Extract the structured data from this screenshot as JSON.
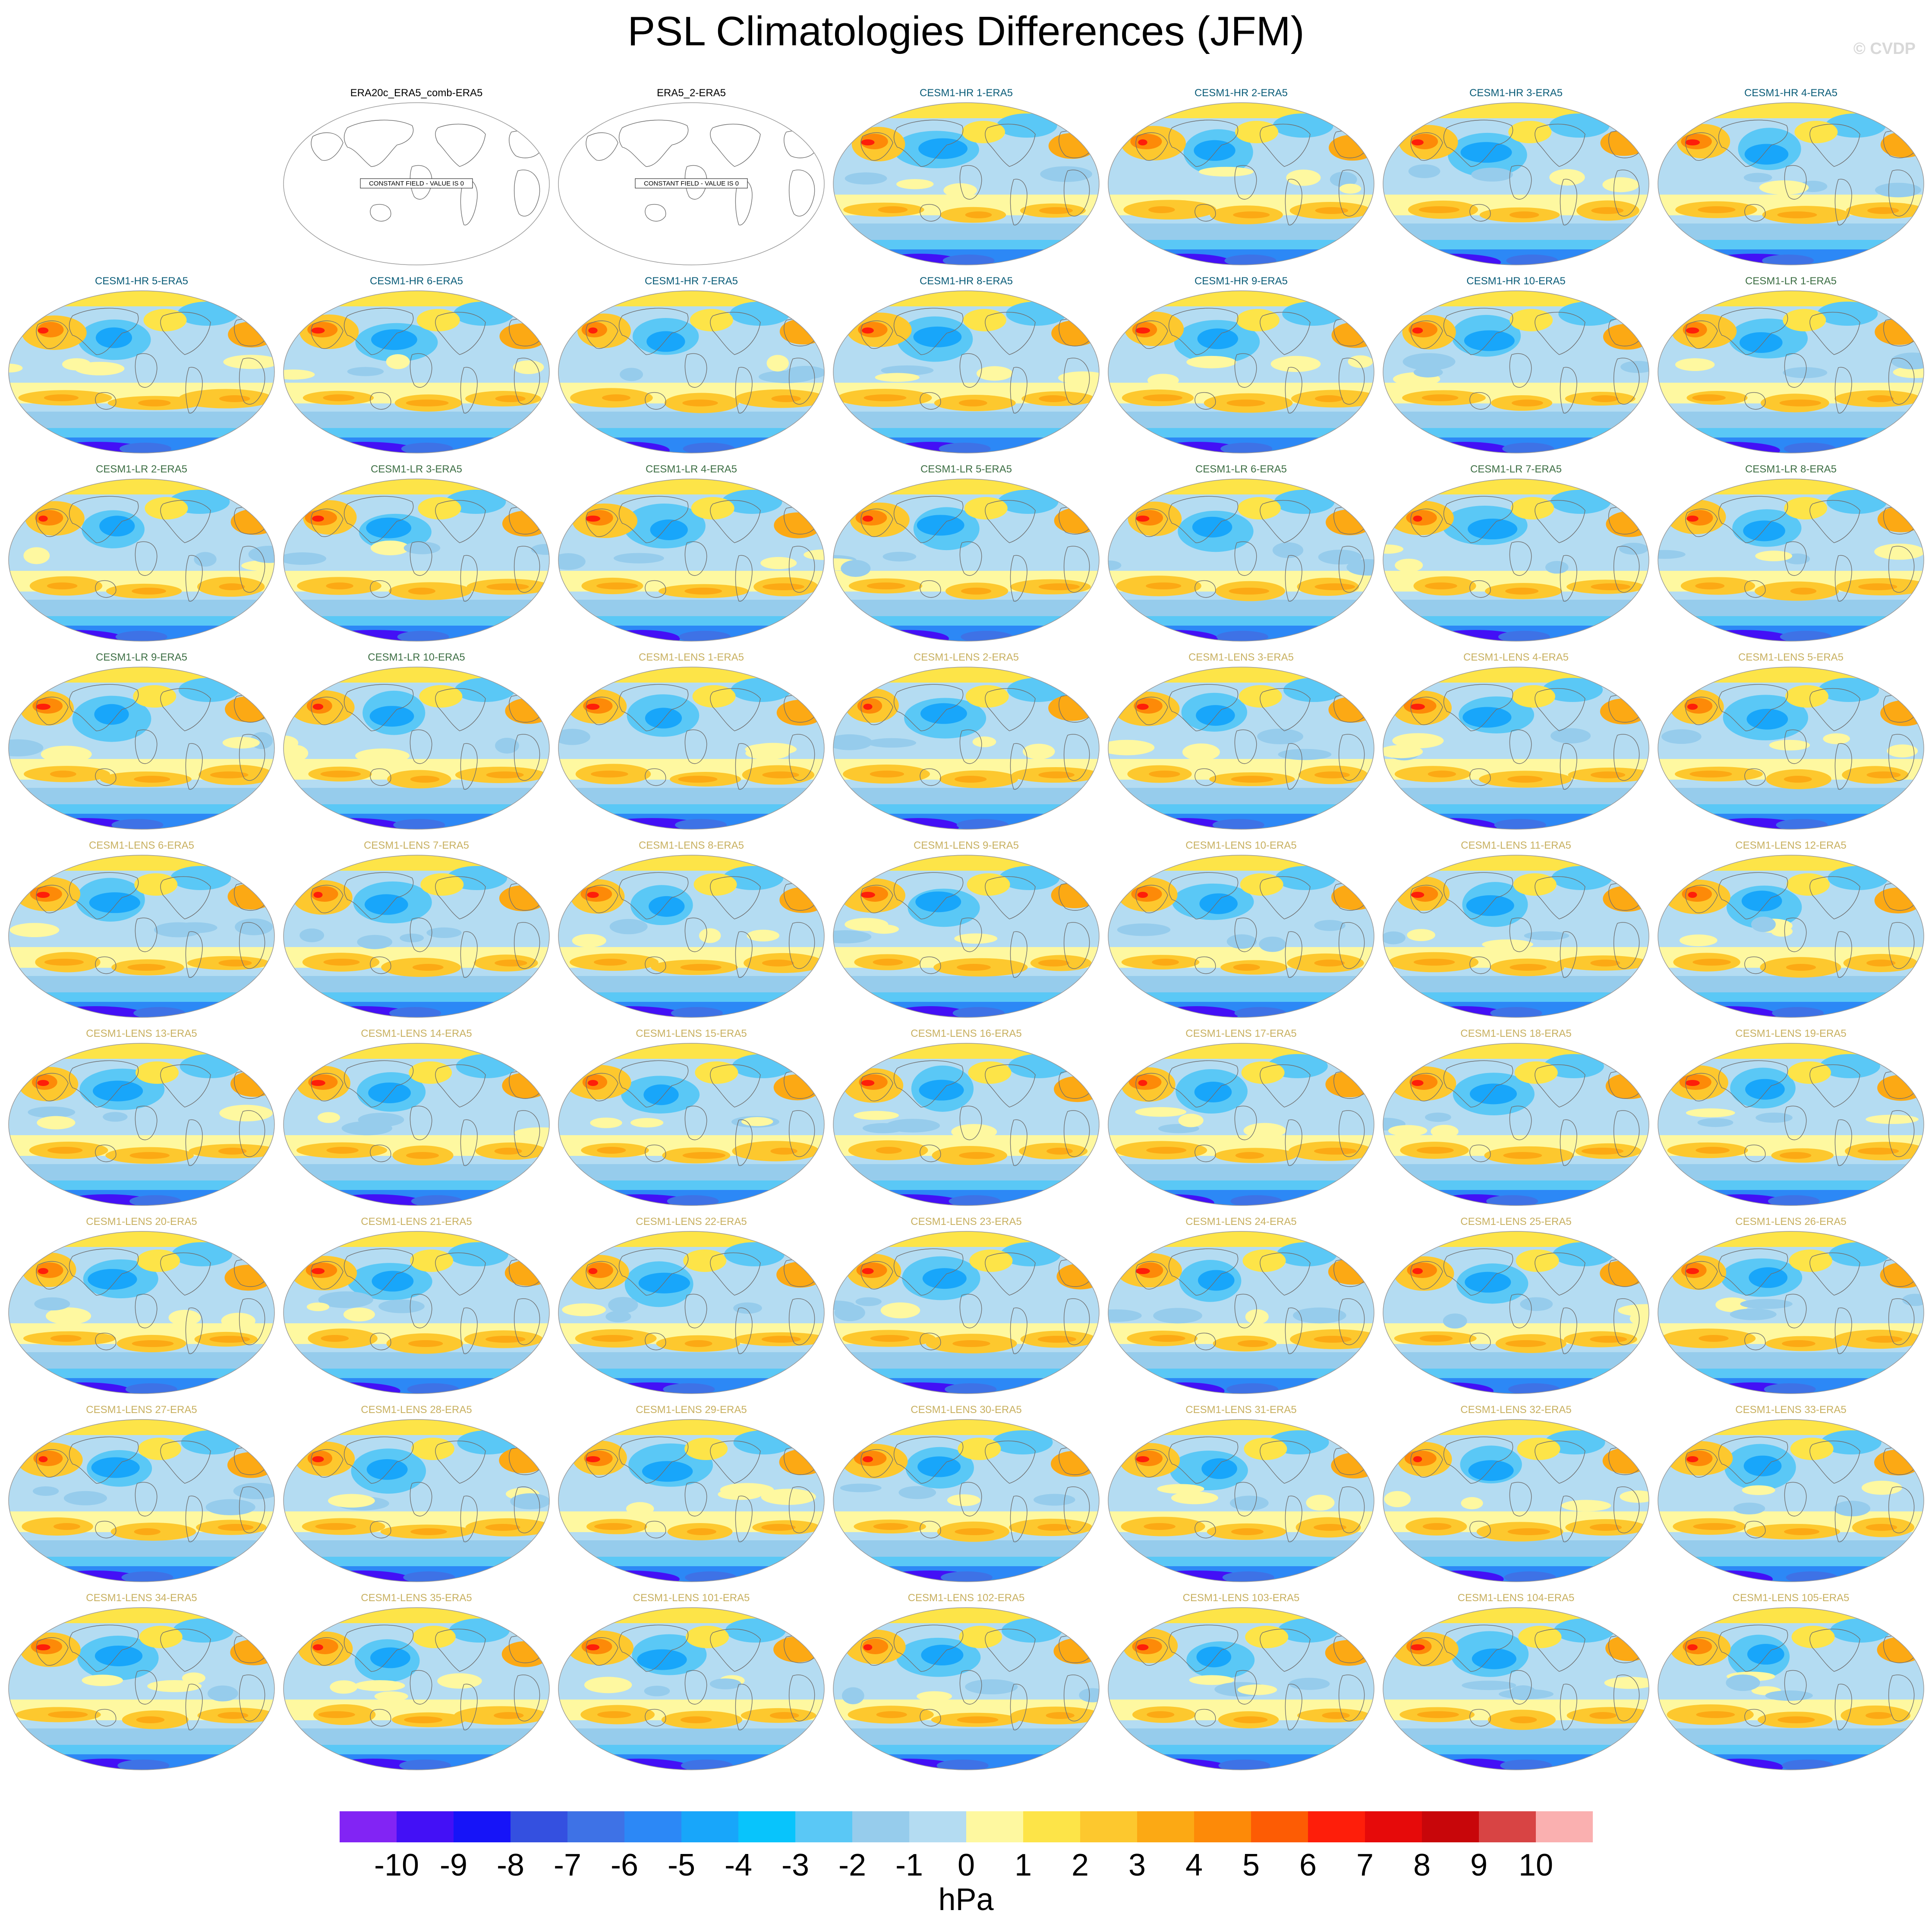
{
  "title": "PSL Climatologies Differences (JFM)",
  "watermark": "© CVDP",
  "units": "hPa",
  "constant_field_text": "CONSTANT FIELD - VALUE IS 0",
  "colorbar": {
    "colors": [
      "#8224f4",
      "#4310f6",
      "#1614f8",
      "#3450e0",
      "#3e72e6",
      "#2c88f6",
      "#18a6fa",
      "#08c4fc",
      "#5ac8f6",
      "#96ccec",
      "#b4dcf2",
      "#fef8a0",
      "#fde448",
      "#fdc82e",
      "#fca914",
      "#fd8a08",
      "#fd5c04",
      "#fe1e0a",
      "#e60a0a",
      "#c8060a",
      "#d84444",
      "#fab0b0"
    ],
    "labels": [
      "-10",
      "-9",
      "-8",
      "-7",
      "-6",
      "-5",
      "-4",
      "-3",
      "-2",
      "-1",
      "0",
      "1",
      "2",
      "3",
      "4",
      "5",
      "6",
      "7",
      "8",
      "9",
      "10"
    ]
  },
  "panels": [
    {
      "title": "ERA20c_ERA5_comb-ERA5",
      "group": "obs",
      "constant": true
    },
    {
      "title": "ERA5_2-ERA5",
      "group": "obs",
      "constant": true
    },
    {
      "title": "CESM1-HR 1-ERA5",
      "group": "hr"
    },
    {
      "title": "CESM1-HR 2-ERA5",
      "group": "hr"
    },
    {
      "title": "CESM1-HR 3-ERA5",
      "group": "hr"
    },
    {
      "title": "CESM1-HR 4-ERA5",
      "group": "hr"
    },
    {
      "title": "CESM1-HR 5-ERA5",
      "group": "hr"
    },
    {
      "title": "CESM1-HR 6-ERA5",
      "group": "hr"
    },
    {
      "title": "CESM1-HR 7-ERA5",
      "group": "hr"
    },
    {
      "title": "CESM1-HR 8-ERA5",
      "group": "hr"
    },
    {
      "title": "CESM1-HR 9-ERA5",
      "group": "hr"
    },
    {
      "title": "CESM1-HR 10-ERA5",
      "group": "hr"
    },
    {
      "title": "CESM1-LR 1-ERA5",
      "group": "lr"
    },
    {
      "title": "CESM1-LR 2-ERA5",
      "group": "lr"
    },
    {
      "title": "CESM1-LR 3-ERA5",
      "group": "lr"
    },
    {
      "title": "CESM1-LR 4-ERA5",
      "group": "lr"
    },
    {
      "title": "CESM1-LR 5-ERA5",
      "group": "lr"
    },
    {
      "title": "CESM1-LR 6-ERA5",
      "group": "lr"
    },
    {
      "title": "CESM1-LR 7-ERA5",
      "group": "lr"
    },
    {
      "title": "CESM1-LR 8-ERA5",
      "group": "lr"
    },
    {
      "title": "CESM1-LR 9-ERA5",
      "group": "lr"
    },
    {
      "title": "CESM1-LR 10-ERA5",
      "group": "lr"
    },
    {
      "title": "CESM1-LENS 1-ERA5",
      "group": "lens"
    },
    {
      "title": "CESM1-LENS 2-ERA5",
      "group": "lens"
    },
    {
      "title": "CESM1-LENS 3-ERA5",
      "group": "lens"
    },
    {
      "title": "CESM1-LENS 4-ERA5",
      "group": "lens"
    },
    {
      "title": "CESM1-LENS 5-ERA5",
      "group": "lens"
    },
    {
      "title": "CESM1-LENS 6-ERA5",
      "group": "lens"
    },
    {
      "title": "CESM1-LENS 7-ERA5",
      "group": "lens"
    },
    {
      "title": "CESM1-LENS 8-ERA5",
      "group": "lens"
    },
    {
      "title": "CESM1-LENS 9-ERA5",
      "group": "lens"
    },
    {
      "title": "CESM1-LENS 10-ERA5",
      "group": "lens"
    },
    {
      "title": "CESM1-LENS 11-ERA5",
      "group": "lens"
    },
    {
      "title": "CESM1-LENS 12-ERA5",
      "group": "lens"
    },
    {
      "title": "CESM1-LENS 13-ERA5",
      "group": "lens"
    },
    {
      "title": "CESM1-LENS 14-ERA5",
      "group": "lens"
    },
    {
      "title": "CESM1-LENS 15-ERA5",
      "group": "lens"
    },
    {
      "title": "CESM1-LENS 16-ERA5",
      "group": "lens"
    },
    {
      "title": "CESM1-LENS 17-ERA5",
      "group": "lens"
    },
    {
      "title": "CESM1-LENS 18-ERA5",
      "group": "lens"
    },
    {
      "title": "CESM1-LENS 19-ERA5",
      "group": "lens"
    },
    {
      "title": "CESM1-LENS 20-ERA5",
      "group": "lens"
    },
    {
      "title": "CESM1-LENS 21-ERA5",
      "group": "lens"
    },
    {
      "title": "CESM1-LENS 22-ERA5",
      "group": "lens"
    },
    {
      "title": "CESM1-LENS 23-ERA5",
      "group": "lens"
    },
    {
      "title": "CESM1-LENS 24-ERA5",
      "group": "lens"
    },
    {
      "title": "CESM1-LENS 25-ERA5",
      "group": "lens"
    },
    {
      "title": "CESM1-LENS 26-ERA5",
      "group": "lens"
    },
    {
      "title": "CESM1-LENS 27-ERA5",
      "group": "lens"
    },
    {
      "title": "CESM1-LENS 28-ERA5",
      "group": "lens"
    },
    {
      "title": "CESM1-LENS 29-ERA5",
      "group": "lens"
    },
    {
      "title": "CESM1-LENS 30-ERA5",
      "group": "lens"
    },
    {
      "title": "CESM1-LENS 31-ERA5",
      "group": "lens"
    },
    {
      "title": "CESM1-LENS 32-ERA5",
      "group": "lens"
    },
    {
      "title": "CESM1-LENS 33-ERA5",
      "group": "lens"
    },
    {
      "title": "CESM1-LENS 34-ERA5",
      "group": "lens"
    },
    {
      "title": "CESM1-LENS 35-ERA5",
      "group": "lens"
    },
    {
      "title": "CESM1-LENS 101-ERA5",
      "group": "lens"
    },
    {
      "title": "CESM1-LENS 102-ERA5",
      "group": "lens"
    },
    {
      "title": "CESM1-LENS 103-ERA5",
      "group": "lens"
    },
    {
      "title": "CESM1-LENS 104-ERA5",
      "group": "lens"
    },
    {
      "title": "CESM1-LENS 105-ERA5",
      "group": "lens"
    }
  ]
}
